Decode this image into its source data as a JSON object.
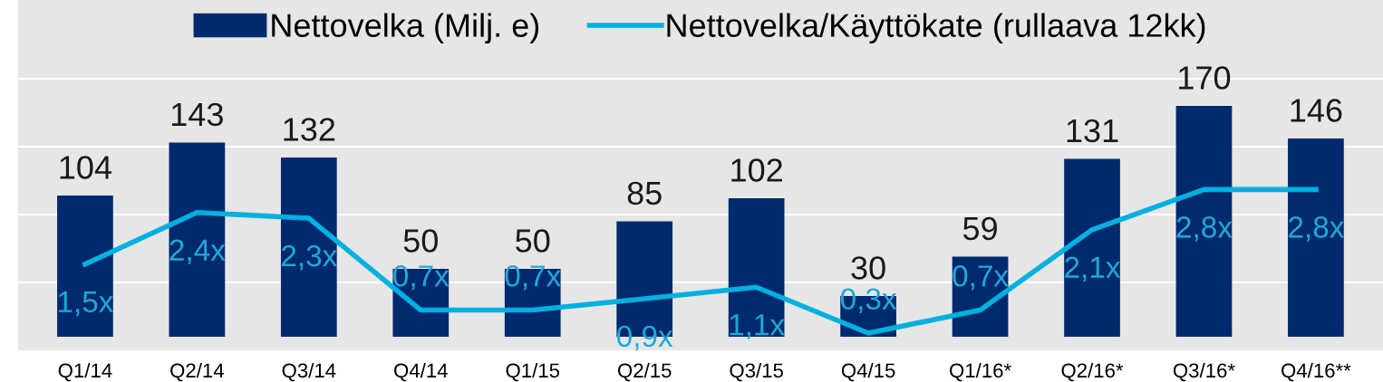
{
  "chart_data": {
    "type": "bar",
    "categories": [
      "Q1/14",
      "Q2/14",
      "Q3/14",
      "Q4/14",
      "Q1/15",
      "Q2/15",
      "Q3/15",
      "Q4/15",
      "Q1/16*",
      "Q2/16*",
      "Q3/16*",
      "Q4/16**"
    ],
    "series": [
      {
        "name": "Nettovelka (Milj. e)",
        "color": "#002a6e",
        "values": [
          104,
          143,
          132,
          50,
          50,
          85,
          102,
          30,
          59,
          131,
          170,
          146
        ]
      },
      {
        "name": "Nettovelka/Käyttökate (rullaava 12kk)",
        "type": "line",
        "axis": "y2",
        "color": "#00b0e0",
        "values": [
          1.5,
          2.4,
          2.3,
          0.7,
          0.7,
          0.9,
          1.1,
          0.3,
          0.7,
          2.1,
          2.8,
          2.8
        ],
        "value_labels": [
          "1,5x",
          "2,4x",
          "2,3x",
          "0,7x",
          "0,7x",
          "0,9x",
          "1,1x",
          "0,3x",
          "0,7x",
          "2,1x",
          "2,8x",
          "2,8x"
        ]
      }
    ],
    "data_labels": true,
    "ylim": [
      -10,
      248
    ],
    "yticks": [
      {
        "value": 40,
        "label": null
      },
      {
        "value": 90,
        "label": null
      },
      {
        "value": 140,
        "label": null
      },
      {
        "value": 190,
        "label": null
      }
    ],
    "y2lim": [
      0,
      6.1
    ],
    "grid": "y",
    "legend": "top",
    "tick_labels": "x",
    "marker": "none",
    "line_style": "solid"
  }
}
